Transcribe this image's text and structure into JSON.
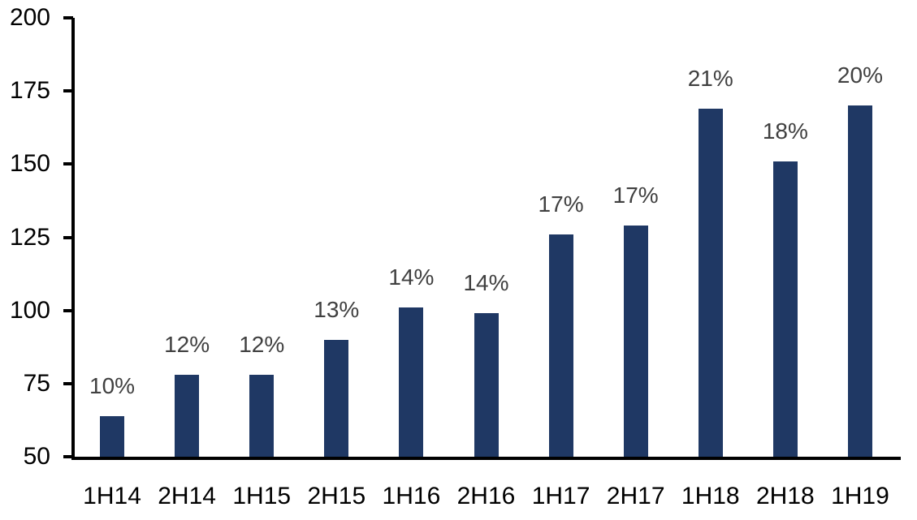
{
  "chart_data": {
    "type": "bar",
    "title": "",
    "xlabel": "",
    "ylabel": "",
    "categories": [
      "1H14",
      "2H14",
      "1H15",
      "2H15",
      "1H16",
      "2H16",
      "1H17",
      "2H17",
      "1H18",
      "2H18",
      "1H19"
    ],
    "values": [
      64,
      78,
      78,
      90,
      101,
      99,
      126,
      129,
      169,
      151,
      170
    ],
    "bar_labels": [
      "10%",
      "12%",
      "12%",
      "13%",
      "14%",
      "14%",
      "17%",
      "17%",
      "21%",
      "18%",
      "20%"
    ],
    "ylim": [
      50,
      200
    ],
    "yticks": [
      50,
      75,
      100,
      125,
      150,
      175,
      200
    ],
    "grid": false,
    "legend": "none",
    "colors": {
      "bar": "#1f3864",
      "bar_label_text": "#404040",
      "axis_line": "#000000",
      "axis_tick_text": "#000000",
      "background": "#ffffff"
    }
  }
}
